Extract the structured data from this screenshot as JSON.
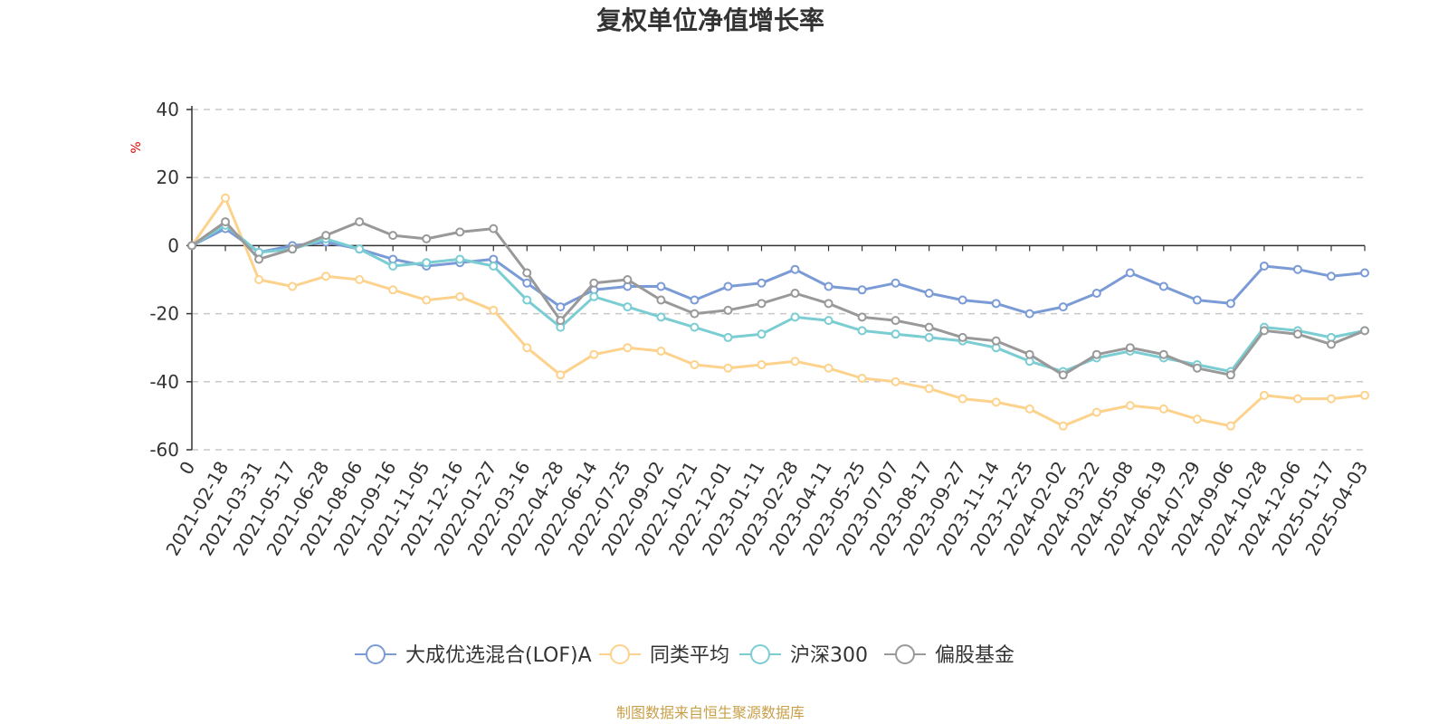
{
  "chart_data": {
    "type": "line",
    "title": "复权单位净值增长率",
    "ylabel": "%",
    "ylim": [
      -60,
      40
    ],
    "yticks": [
      40,
      20,
      0,
      -20,
      -40,
      -60
    ],
    "grid": true,
    "legend_position": "bottom",
    "x_labels": [
      "0",
      "2021-02-18",
      "2021-03-31",
      "2021-05-17",
      "2021-06-28",
      "2021-08-06",
      "2021-09-16",
      "2021-11-05",
      "2021-12-16",
      "2022-01-27",
      "2022-03-16",
      "2022-04-28",
      "2022-06-14",
      "2022-07-25",
      "2022-09-02",
      "2022-10-21",
      "2022-12-01",
      "2023-01-11",
      "2023-02-28",
      "2023-04-11",
      "2023-05-25",
      "2023-07-07",
      "2023-08-17",
      "2023-09-27",
      "2023-11-14",
      "2023-12-25",
      "2024-02-02",
      "2024-03-22",
      "2024-05-08",
      "2024-06-19",
      "2024-07-29",
      "2024-09-06",
      "2024-10-28",
      "2024-12-06",
      "2025-01-17",
      "2025-04-03"
    ],
    "series": [
      {
        "name": "大成优选混合(LOF)A",
        "color": "#7b9bd6",
        "values": [
          0,
          5,
          -2,
          0,
          1,
          -1,
          -4,
          -6,
          -5,
          -4,
          -11,
          -18,
          -13,
          -12,
          -12,
          -16,
          -12,
          -11,
          -7,
          -12,
          -13,
          -11,
          -14,
          -16,
          -17,
          -20,
          -18,
          -14,
          -8,
          -12,
          -16,
          -17,
          -6,
          -7,
          -9,
          -8
        ]
      },
      {
        "name": "同类平均",
        "color": "#fcd28c",
        "values": [
          0,
          14,
          -10,
          -12,
          -9,
          -10,
          -13,
          -16,
          -15,
          -19,
          -30,
          -38,
          -32,
          -30,
          -31,
          -35,
          -36,
          -35,
          -34,
          -36,
          -39,
          -40,
          -42,
          -45,
          -46,
          -48,
          -53,
          -49,
          -47,
          -48,
          -51,
          -53,
          -44,
          -45,
          -45,
          -44
        ]
      },
      {
        "name": "沪深300",
        "color": "#7acdd2",
        "values": [
          0,
          6,
          -2,
          -1,
          2,
          -1,
          -6,
          -5,
          -4,
          -6,
          -16,
          -24,
          -15,
          -18,
          -21,
          -24,
          -27,
          -26,
          -21,
          -22,
          -25,
          -26,
          -27,
          -28,
          -30,
          -34,
          -37,
          -33,
          -31,
          -33,
          -35,
          -37,
          -24,
          -25,
          -27,
          -25
        ]
      },
      {
        "name": "偏股基金",
        "color": "#999999",
        "values": [
          0,
          7,
          -4,
          -1,
          3,
          7,
          3,
          2,
          4,
          5,
          -8,
          -22,
          -11,
          -10,
          -16,
          -20,
          -19,
          -17,
          -14,
          -17,
          -21,
          -22,
          -24,
          -27,
          -28,
          -32,
          -38,
          -32,
          -30,
          -32,
          -36,
          -38,
          -25,
          -26,
          -29,
          -25
        ]
      }
    ]
  },
  "footer": {
    "source": "制图数据来自恒生聚源数据库"
  }
}
